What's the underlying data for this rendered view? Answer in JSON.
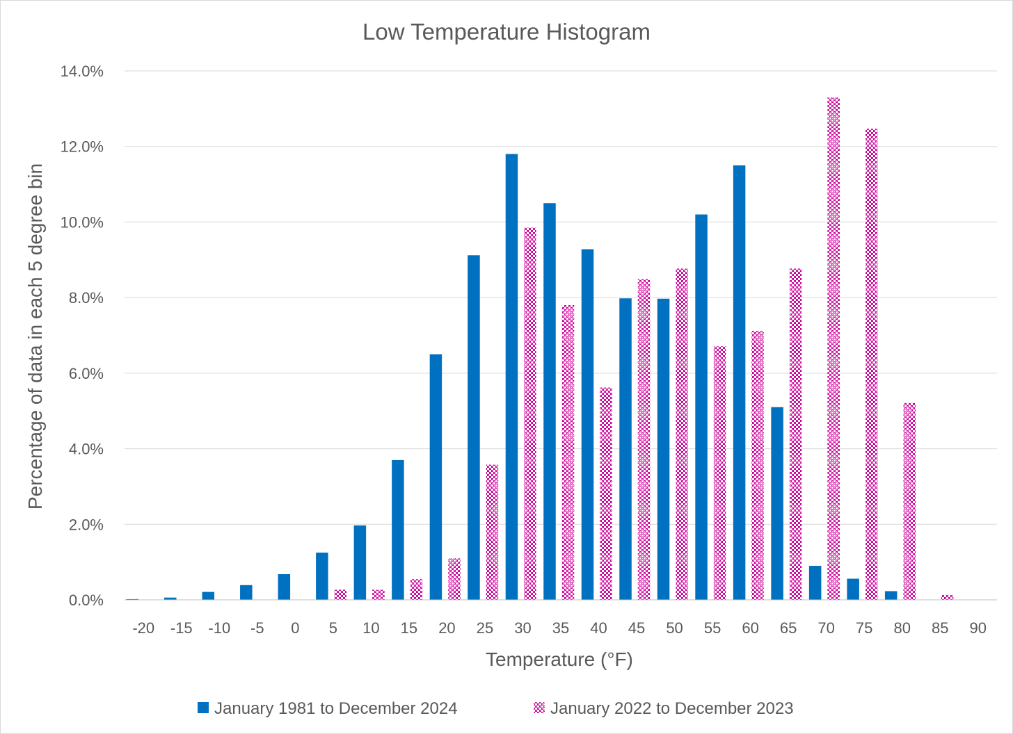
{
  "chart_data": {
    "type": "bar",
    "title": "Low Temperature Histogram",
    "xlabel": "Temperature (°F)",
    "ylabel": "Percentage of data in each 5 degree bin",
    "categories": [
      "-20",
      "-15",
      "-10",
      "-5",
      "0",
      "5",
      "10",
      "15",
      "20",
      "25",
      "30",
      "35",
      "40",
      "45",
      "50",
      "55",
      "60",
      "65",
      "70",
      "75",
      "80",
      "85",
      "90"
    ],
    "yticks": [
      "0.0%",
      "2.0%",
      "4.0%",
      "6.0%",
      "8.0%",
      "10.0%",
      "12.0%",
      "14.0%"
    ],
    "ylim": [
      0,
      14
    ],
    "grid": true,
    "legend_position": "bottom",
    "series": [
      {
        "name": "January 1981 to December 2024",
        "color": "#0070c0",
        "pattern": "solid",
        "values": [
          0.02,
          0.06,
          0.21,
          0.39,
          0.68,
          1.25,
          1.97,
          3.7,
          6.5,
          9.12,
          11.8,
          10.5,
          9.28,
          7.98,
          7.97,
          10.2,
          11.5,
          5.1,
          0.9,
          0.56,
          0.23,
          0,
          0
        ]
      },
      {
        "name": "January 2022 to December 2023",
        "color": "#cc0099",
        "pattern": "checker",
        "values": [
          0,
          0,
          0,
          0,
          0,
          0.27,
          0.27,
          0.55,
          1.1,
          3.58,
          9.85,
          7.8,
          5.62,
          8.49,
          8.77,
          6.71,
          7.12,
          8.77,
          13.3,
          12.47,
          5.21,
          0.13,
          0
        ]
      }
    ]
  }
}
